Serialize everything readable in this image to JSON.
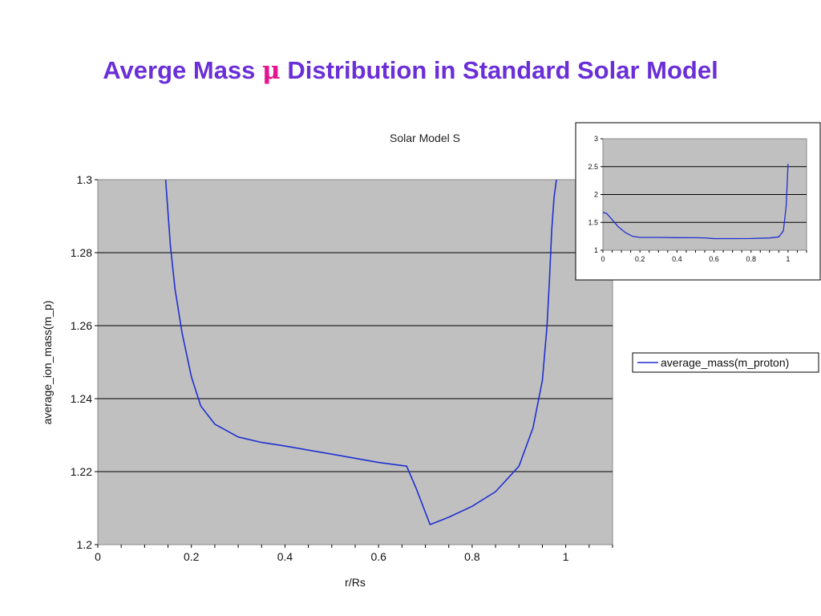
{
  "slide": {
    "title_before": "Averge Mass ",
    "title_symbol": "μ",
    "title_after": " Distribution in Standard Solar Model"
  },
  "colors": {
    "title": "#6a2fd8",
    "symbol": "#e4158f",
    "plot_bg": "#c0c0c0",
    "line": "#1f2fd0",
    "grid": "#000000"
  },
  "chart_data": [
    {
      "type": "line",
      "title": "Solar Model S",
      "xlabel": "r/Rs",
      "ylabel": "average_ion_mass(m_p)",
      "xlim": [
        0,
        1.1
      ],
      "ylim": [
        1.2,
        1.3
      ],
      "xticks": [
        "0",
        "0.2",
        "0.4",
        "0.6",
        "0.8",
        "1"
      ],
      "yticks": [
        "1.2",
        "1.22",
        "1.24",
        "1.26",
        "1.28",
        "1.3"
      ],
      "grid": "horizontal",
      "legend": "right",
      "series": [
        {
          "name": "average_mass(m_proton)",
          "x": [
            0.145,
            0.155,
            0.165,
            0.18,
            0.2,
            0.22,
            0.25,
            0.3,
            0.35,
            0.4,
            0.5,
            0.6,
            0.66,
            0.68,
            0.71,
            0.75,
            0.8,
            0.85,
            0.9,
            0.93,
            0.95,
            0.96,
            0.965,
            0.97,
            0.975,
            0.98
          ],
          "y": [
            1.3,
            1.282,
            1.27,
            1.258,
            1.246,
            1.238,
            1.233,
            1.2295,
            1.228,
            1.227,
            1.2248,
            1.2225,
            1.2215,
            1.2155,
            1.2055,
            1.2075,
            1.2105,
            1.2145,
            1.2215,
            1.232,
            1.245,
            1.26,
            1.272,
            1.286,
            1.295,
            1.3
          ]
        }
      ]
    },
    {
      "type": "line",
      "title": "",
      "xlim": [
        0,
        1.1
      ],
      "ylim": [
        1,
        3
      ],
      "xticks": [
        "0",
        "0.2",
        "0.4",
        "0.6",
        "0.8",
        "1"
      ],
      "yticks": [
        "1",
        "1.5",
        "2",
        "2.5",
        "3"
      ],
      "grid": "horizontal",
      "series": [
        {
          "x": [
            0,
            0.02,
            0.05,
            0.08,
            0.12,
            0.16,
            0.2,
            0.25,
            0.3,
            0.4,
            0.5,
            0.55,
            0.6,
            0.7,
            0.8,
            0.9,
            0.95,
            0.975,
            0.99,
            1.0
          ],
          "y": [
            1.68,
            1.66,
            1.55,
            1.43,
            1.32,
            1.25,
            1.23,
            1.23,
            1.23,
            1.226,
            1.225,
            1.222,
            1.208,
            1.208,
            1.21,
            1.22,
            1.24,
            1.35,
            1.8,
            2.55
          ]
        }
      ]
    }
  ]
}
